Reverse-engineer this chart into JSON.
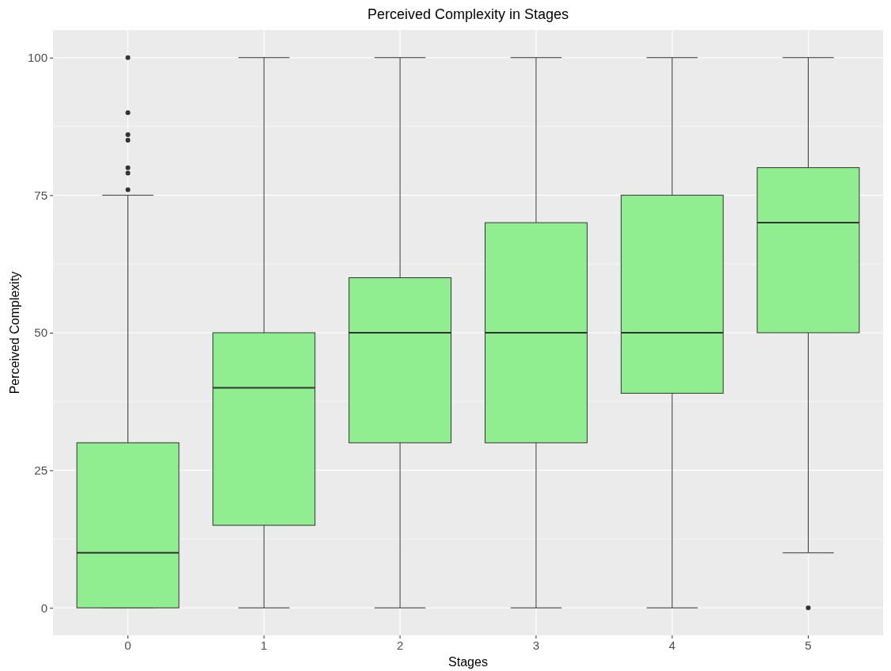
{
  "chart_data": {
    "type": "box",
    "title": "Perceived Complexity in Stages",
    "xlabel": "Stages",
    "ylabel": "Perceived Complexity",
    "categories": [
      "0",
      "1",
      "2",
      "3",
      "4",
      "5"
    ],
    "color": "#90ee90",
    "boxes": [
      {
        "low": 0,
        "q1": 0,
        "median": 10,
        "q3": 30,
        "high": 75,
        "outliers": [
          76,
          79,
          80,
          85,
          86,
          90,
          100
        ]
      },
      {
        "low": 0,
        "q1": 15,
        "median": 40,
        "q3": 50,
        "high": 100
      },
      {
        "low": 0,
        "q1": 30,
        "median": 50,
        "q3": 60,
        "high": 100
      },
      {
        "low": 0,
        "q1": 30,
        "median": 50,
        "q3": 70,
        "high": 100
      },
      {
        "low": 0,
        "q1": 39,
        "median": 50,
        "q3": 75,
        "high": 100
      },
      {
        "low": 10,
        "q1": 50,
        "median": 70,
        "q3": 80,
        "high": 100,
        "outliers": [
          0
        ]
      }
    ],
    "ylim": [
      -5,
      105
    ],
    "yticks": [
      0,
      25,
      50,
      75,
      100
    ],
    "grid": true
  }
}
